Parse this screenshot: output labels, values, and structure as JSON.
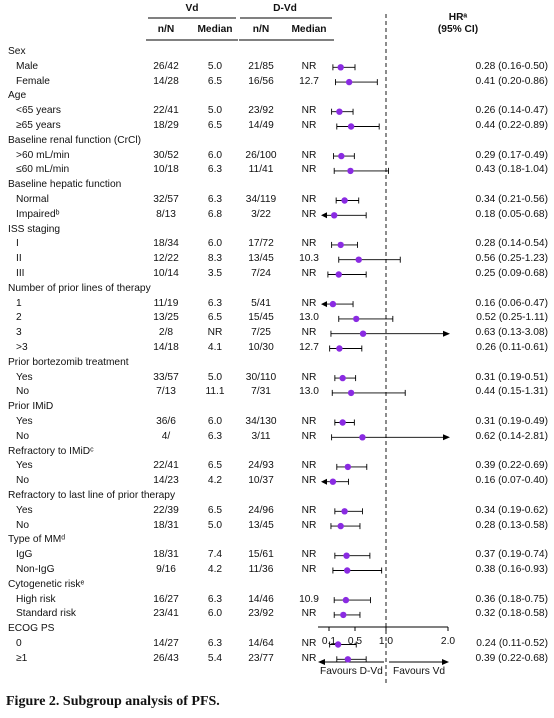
{
  "header": {
    "group_vd": "Vd",
    "group_dvd": "D-Vd",
    "col_nn": "n/N",
    "col_median": "Median",
    "hr_title": "HRᵃ",
    "hr_ci": "(95% CI)"
  },
  "axis": {
    "ticks": [
      "0.1",
      "0.5",
      "1.0",
      "2.0"
    ],
    "favours_left": "Favours D-Vd",
    "favours_right": "Favours Vd"
  },
  "caption": "Figure 2. Subgroup analysis of PFS.",
  "chart_data": {
    "type": "forest",
    "x_ticks": [
      0.1,
      0.5,
      1.0,
      2.0
    ],
    "reference_line": 1.0,
    "marker_color": "#8a2be2",
    "rows": [
      {
        "kind": "header",
        "label": "Sex"
      },
      {
        "kind": "item",
        "label": "Male",
        "vd_nn": "26/42",
        "vd_median": "5.0",
        "dvd_nn": "21/85",
        "dvd_median": "NR",
        "hr": 0.28,
        "lo": 0.16,
        "hi": 0.5,
        "text": "0.28 (0.16-0.50)"
      },
      {
        "kind": "item",
        "label": "Female",
        "vd_nn": "14/28",
        "vd_median": "6.5",
        "dvd_nn": "16/56",
        "dvd_median": "12.7",
        "hr": 0.41,
        "lo": 0.2,
        "hi": 0.86,
        "text": "0.41 (0.20-0.86)"
      },
      {
        "kind": "header",
        "label": "Age"
      },
      {
        "kind": "item",
        "label": "<65 years",
        "vd_nn": "22/41",
        "vd_median": "5.0",
        "dvd_nn": "23/92",
        "dvd_median": "NR",
        "hr": 0.26,
        "lo": 0.14,
        "hi": 0.47,
        "text": "0.26 (0.14-0.47)"
      },
      {
        "kind": "item",
        "label": "≥65 years",
        "vd_nn": "18/29",
        "vd_median": "6.5",
        "dvd_nn": "14/49",
        "dvd_median": "NR",
        "hr": 0.44,
        "lo": 0.22,
        "hi": 0.89,
        "text": "0.44 (0.22-0.89)"
      },
      {
        "kind": "header",
        "label": "Baseline renal function (CrCl)"
      },
      {
        "kind": "item",
        "label": ">60 mL/min",
        "vd_nn": "30/52",
        "vd_median": "6.0",
        "dvd_nn": "26/100",
        "dvd_median": "NR",
        "hr": 0.29,
        "lo": 0.17,
        "hi": 0.49,
        "text": "0.29 (0.17-0.49)"
      },
      {
        "kind": "item",
        "label": "≤60 mL/min",
        "vd_nn": "10/18",
        "vd_median": "6.3",
        "dvd_nn": "11/41",
        "dvd_median": "NR",
        "hr": 0.43,
        "lo": 0.18,
        "hi": 1.04,
        "text": "0.43 (0.18-1.04)"
      },
      {
        "kind": "header",
        "label": "Baseline hepatic function"
      },
      {
        "kind": "item",
        "label": "Normal",
        "vd_nn": "32/57",
        "vd_median": "6.3",
        "dvd_nn": "34/119",
        "dvd_median": "NR",
        "hr": 0.34,
        "lo": 0.21,
        "hi": 0.56,
        "text": "0.34 (0.21-0.56)"
      },
      {
        "kind": "item",
        "label": "Impairedᵇ",
        "vd_nn": "8/13",
        "vd_median": "6.8",
        "dvd_nn": "3/22",
        "dvd_median": "NR",
        "hr": 0.18,
        "lo": 0.05,
        "hi": 0.68,
        "text": "0.18 (0.05-0.68)",
        "left_arrow": true
      },
      {
        "kind": "header",
        "label": "ISS staging"
      },
      {
        "kind": "item",
        "label": "I",
        "vd_nn": "18/34",
        "vd_median": "6.0",
        "dvd_nn": "17/72",
        "dvd_median": "NR",
        "hr": 0.28,
        "lo": 0.14,
        "hi": 0.54,
        "text": "0.28 (0.14-0.54)"
      },
      {
        "kind": "item",
        "label": "II",
        "vd_nn": "12/22",
        "vd_median": "8.3",
        "dvd_nn": "13/45",
        "dvd_median": "10.3",
        "hr": 0.56,
        "lo": 0.25,
        "hi": 1.23,
        "text": "0.56 (0.25-1.23)"
      },
      {
        "kind": "item",
        "label": "III",
        "vd_nn": "10/14",
        "vd_median": "3.5",
        "dvd_nn": "7/24",
        "dvd_median": "NR",
        "hr": 0.25,
        "lo": 0.09,
        "hi": 0.68,
        "text": "0.25 (0.09-0.68)"
      },
      {
        "kind": "header",
        "label": "Number of prior lines of therapy"
      },
      {
        "kind": "item",
        "label": "1",
        "vd_nn": "11/19",
        "vd_median": "6.3",
        "dvd_nn": "5/41",
        "dvd_median": "NR",
        "hr": 0.16,
        "lo": 0.06,
        "hi": 0.47,
        "text": "0.16 (0.06-0.47)",
        "left_arrow": true
      },
      {
        "kind": "item",
        "label": "2",
        "vd_nn": "13/25",
        "vd_median": "6.5",
        "dvd_nn": "15/45",
        "dvd_median": "13.0",
        "hr": 0.52,
        "lo": 0.25,
        "hi": 1.11,
        "text": "0.52 (0.25-1.11)"
      },
      {
        "kind": "item",
        "label": "3",
        "vd_nn": "2/8",
        "vd_median": "NR",
        "dvd_nn": "7/25",
        "dvd_median": "NR",
        "hr": 0.63,
        "lo": 0.13,
        "hi": 3.08,
        "text": "0.63 (0.13-3.08)",
        "right_arrow": true
      },
      {
        "kind": "item",
        "label": ">3",
        "vd_nn": "14/18",
        "vd_median": "4.1",
        "dvd_nn": "10/30",
        "dvd_median": "12.7",
        "hr": 0.26,
        "lo": 0.11,
        "hi": 0.61,
        "text": "0.26 (0.11-0.61)"
      },
      {
        "kind": "header",
        "label": "Prior bortezomib treatment"
      },
      {
        "kind": "item",
        "label": "Yes",
        "vd_nn": "33/57",
        "vd_median": "5.0",
        "dvd_nn": "30/110",
        "dvd_median": "NR",
        "hr": 0.31,
        "lo": 0.19,
        "hi": 0.51,
        "text": "0.31 (0.19-0.51)"
      },
      {
        "kind": "item",
        "label": "No",
        "vd_nn": "7/13",
        "vd_median": "11.1",
        "dvd_nn": "7/31",
        "dvd_median": "13.0",
        "hr": 0.44,
        "lo": 0.15,
        "hi": 1.31,
        "text": "0.44 (0.15-1.31)"
      },
      {
        "kind": "header",
        "label": "Prior IMiD"
      },
      {
        "kind": "item",
        "label": "Yes",
        "vd_nn": "36/6",
        "vd_median": "6.0",
        "dvd_nn": "34/130",
        "dvd_median": "NR",
        "hr": 0.31,
        "lo": 0.19,
        "hi": 0.49,
        "text": "0.31 (0.19-0.49)"
      },
      {
        "kind": "item",
        "label": "No",
        "vd_nn": "4/",
        "vd_median": "6.3",
        "dvd_nn": "3/11",
        "dvd_median": "NR",
        "hr": 0.62,
        "lo": 0.14,
        "hi": 2.81,
        "text": "0.62 (0.14-2.81)",
        "right_arrow": true
      },
      {
        "kind": "header",
        "label": "Refractory to IMiDᶜ"
      },
      {
        "kind": "item",
        "label": "Yes",
        "vd_nn": "22/41",
        "vd_median": "6.5",
        "dvd_nn": "24/93",
        "dvd_median": "NR",
        "hr": 0.39,
        "lo": 0.22,
        "hi": 0.69,
        "text": "0.39 (0.22-0.69)"
      },
      {
        "kind": "item",
        "label": "No",
        "vd_nn": "14/23",
        "vd_median": "4.2",
        "dvd_nn": "10/37",
        "dvd_median": "NR",
        "hr": 0.16,
        "lo": 0.07,
        "hi": 0.4,
        "text": "0.16 (0.07-0.40)",
        "left_arrow": true
      },
      {
        "kind": "header",
        "label": "Refractory to last line of prior therapy"
      },
      {
        "kind": "item",
        "label": "Yes",
        "vd_nn": "22/39",
        "vd_median": "6.5",
        "dvd_nn": "24/96",
        "dvd_median": "NR",
        "hr": 0.34,
        "lo": 0.19,
        "hi": 0.62,
        "text": "0.34 (0.19-0.62)"
      },
      {
        "kind": "item",
        "label": "No",
        "vd_nn": "18/31",
        "vd_median": "5.0",
        "dvd_nn": "13/45",
        "dvd_median": "NR",
        "hr": 0.28,
        "lo": 0.13,
        "hi": 0.58,
        "text": "0.28 (0.13-0.58)"
      },
      {
        "kind": "header",
        "label": "Type of MMᵈ"
      },
      {
        "kind": "item",
        "label": "IgG",
        "vd_nn": "18/31",
        "vd_median": "7.4",
        "dvd_nn": "15/61",
        "dvd_median": "NR",
        "hr": 0.37,
        "lo": 0.19,
        "hi": 0.74,
        "text": "0.37 (0.19-0.74)"
      },
      {
        "kind": "item",
        "label": "Non-IgG",
        "vd_nn": "9/16",
        "vd_median": "4.2",
        "dvd_nn": "11/36",
        "dvd_median": "NR",
        "hr": 0.38,
        "lo": 0.16,
        "hi": 0.93,
        "text": "0.38 (0.16-0.93)"
      },
      {
        "kind": "header",
        "label": "Cytogenetic riskᵉ"
      },
      {
        "kind": "item",
        "label": "High risk",
        "vd_nn": "16/27",
        "vd_median": "6.3",
        "dvd_nn": "14/46",
        "dvd_median": "10.9",
        "hr": 0.36,
        "lo": 0.18,
        "hi": 0.75,
        "text": "0.36 (0.18-0.75)"
      },
      {
        "kind": "item",
        "label": "Standard risk",
        "vd_nn": "23/41",
        "vd_median": "6.0",
        "dvd_nn": "23/92",
        "dvd_median": "NR",
        "hr": 0.32,
        "lo": 0.18,
        "hi": 0.58,
        "text": "0.32 (0.18-0.58)"
      },
      {
        "kind": "header",
        "label": "ECOG PS"
      },
      {
        "kind": "item",
        "label": "0",
        "vd_nn": "14/27",
        "vd_median": "6.3",
        "dvd_nn": "14/64",
        "dvd_median": "NR",
        "hr": 0.24,
        "lo": 0.11,
        "hi": 0.52,
        "text": "0.24 (0.11-0.52)"
      },
      {
        "kind": "item",
        "label": "≥1",
        "vd_nn": "26/43",
        "vd_median": "5.4",
        "dvd_nn": "23/77",
        "dvd_median": "NR",
        "hr": 0.39,
        "lo": 0.22,
        "hi": 0.68,
        "text": "0.39 (0.22-0.68)"
      }
    ]
  }
}
